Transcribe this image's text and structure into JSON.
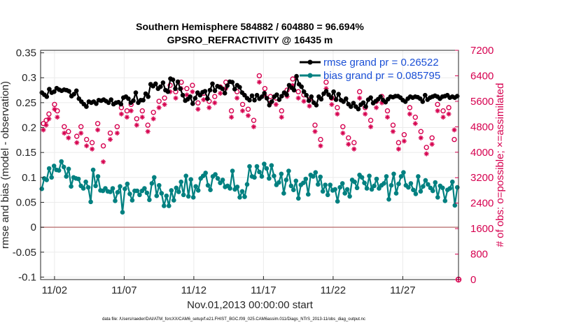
{
  "chart_data": {
    "type": "line",
    "title_line1": "Southern Hemisphere 584882 / 604880 = 96.694%",
    "title_line2": "GPSRO_REFRACTIVITY @ 16435 m",
    "xlabel": "Nov.01,2013 00:00:00 start",
    "ylabel_left": "rmse and bias (model - observation)",
    "ylabel_right": "# of obs: o=possible; ×=assimilated",
    "footnote": "data file: /Users/raeder/DAI/ATM_forcXX/CAM6_setup/f.e21.FHIST_BGC.f09_025.CAM6assim.011/Diags_NTrS_2013-11/obs_diag_output.nc",
    "x_range_days": [
      0.5,
      30.5
    ],
    "ylim_left": [
      -0.105,
      0.355
    ],
    "ylim_right": [
      0,
      7200
    ],
    "x_ticks": [
      {
        "day": 1.5,
        "label": "11/02"
      },
      {
        "day": 6.5,
        "label": "11/07"
      },
      {
        "day": 11.5,
        "label": "11/12"
      },
      {
        "day": 16.5,
        "label": "11/17"
      },
      {
        "day": 21.5,
        "label": "11/22"
      },
      {
        "day": 26.5,
        "label": "11/27"
      }
    ],
    "y_ticks_left": [
      "0.35",
      "0.3",
      "0.25",
      "0.2",
      "0.15",
      "0.1",
      "0.05",
      "0",
      "-0.05",
      "-0.1"
    ],
    "y_ticks_left_values": [
      0.35,
      0.3,
      0.25,
      0.2,
      0.15,
      0.1,
      0.05,
      0,
      -0.05,
      -0.1
    ],
    "y_ticks_right": [
      "7200",
      "6400",
      "5600",
      "4800",
      "4000",
      "3200",
      "2400",
      "1600",
      "800",
      "0"
    ],
    "y_ticks_right_values": [
      7200,
      6400,
      5600,
      4800,
      4000,
      3200,
      2400,
      1600,
      800,
      0
    ],
    "legend": [
      {
        "label": "rmse grand pr = 0.26522",
        "color": "#000000"
      },
      {
        "label": "bias grand pr = 0.085795",
        "color": "#008080"
      }
    ],
    "colors": {
      "rmse": "#000000",
      "bias": "#008080",
      "obs": "#d6004f",
      "zero_line": "#c08080",
      "text_blue": "#1a4fd6"
    },
    "series": [
      {
        "name": "rmse grand pr = 0.26522",
        "values": [
          0.27,
          0.266,
          0.262,
          0.277,
          0.27,
          0.272,
          0.279,
          0.276,
          0.274,
          0.276,
          0.275,
          0.273,
          0.263,
          0.267,
          0.274,
          0.258,
          0.252,
          0.247,
          0.242,
          0.252,
          0.25,
          0.252,
          0.248,
          0.255,
          0.254,
          0.256,
          0.253,
          0.25,
          0.256,
          0.247,
          0.25,
          0.251,
          0.247,
          0.26,
          0.262,
          0.258,
          0.25,
          0.254,
          0.27,
          0.25,
          0.255,
          0.255,
          0.268,
          0.262,
          0.287,
          0.283,
          0.288,
          0.278,
          0.282,
          0.29,
          0.275,
          0.272,
          0.298,
          0.296,
          0.278,
          0.292,
          0.278,
          0.265,
          0.254,
          0.257,
          0.262,
          0.248,
          0.259,
          0.27,
          0.265,
          0.271,
          0.273,
          0.258,
          0.275,
          0.288,
          0.274,
          0.283,
          0.281,
          0.278,
          0.269,
          0.284,
          0.292,
          0.291,
          0.277,
          0.285,
          0.281,
          0.27,
          0.265,
          0.259,
          0.255,
          0.264,
          0.255,
          0.265,
          0.258,
          0.262,
          0.269,
          0.259,
          0.245,
          0.252,
          0.262,
          0.266,
          0.256,
          0.263,
          0.27,
          0.266,
          0.285,
          0.28,
          0.275,
          0.303,
          0.287,
          0.282,
          0.272,
          0.265,
          0.254,
          0.262,
          0.25,
          0.245,
          0.262,
          0.257,
          0.268,
          0.273,
          0.266,
          0.26,
          0.272,
          0.256,
          0.267,
          0.255,
          0.252,
          0.258,
          0.247,
          0.242,
          0.249,
          0.242,
          0.237,
          0.246,
          0.25,
          0.242,
          0.256,
          0.26,
          0.249,
          0.253,
          0.257,
          0.262,
          0.255,
          0.251,
          0.257,
          0.262,
          0.261,
          0.263,
          0.263,
          0.26,
          0.255,
          0.252,
          0.258,
          0.262,
          0.26,
          0.262,
          0.261,
          0.258,
          0.252,
          0.265,
          0.256,
          0.26,
          0.262,
          0.264,
          0.262,
          0.258,
          0.262,
          0.263,
          0.265,
          0.26,
          0.262,
          0.26,
          0.263
        ]
      },
      {
        "name": "bias grand pr = 0.085795",
        "values": [
          0.077,
          0.098,
          0.095,
          0.118,
          0.1,
          0.123,
          0.115,
          0.114,
          0.132,
          0.121,
          0.102,
          0.117,
          0.082,
          0.1,
          0.098,
          0.097,
          0.083,
          0.078,
          0.091,
          0.08,
          0.051,
          0.115,
          0.083,
          0.102,
          0.074,
          0.073,
          0.078,
          0.072,
          0.071,
          0.078,
          0.053,
          0.07,
          0.082,
          0.03,
          0.077,
          0.087,
          0.067,
          0.054,
          0.073,
          0.073,
          0.065,
          0.073,
          0.078,
          0.069,
          0.055,
          0.088,
          0.1,
          0.063,
          0.084,
          0.068,
          0.043,
          0.063,
          0.043,
          0.074,
          0.054,
          0.079,
          0.071,
          0.091,
          0.065,
          0.103,
          0.062,
          0.096,
          0.06,
          0.082,
          0.074,
          0.098,
          0.103,
          0.109,
          0.084,
          0.075,
          0.102,
          0.106,
          0.098,
          0.089,
          0.095,
          0.081,
          0.083,
          0.078,
          0.113,
          0.076,
          0.081,
          0.06,
          0.072,
          0.061,
          0.086,
          0.122,
          0.102,
          0.1,
          0.122,
          0.111,
          0.102,
          0.127,
          0.118,
          0.098,
          0.124,
          0.103,
          0.085,
          0.09,
          0.107,
          0.068,
          0.095,
          0.113,
          0.083,
          0.075,
          0.093,
          0.058,
          0.085,
          0.089,
          0.097,
          0.066,
          0.105,
          0.102,
          0.11,
          0.086,
          0.101,
          0.072,
          0.085,
          0.065,
          0.085,
          0.074,
          0.076,
          0.052,
          0.08,
          0.088,
          0.068,
          0.076,
          0.062,
          0.095,
          0.091,
          0.079,
          0.105,
          0.1,
          0.089,
          0.078,
          0.103,
          0.076,
          0.083,
          0.097,
          0.078,
          0.084,
          0.088,
          0.102,
          0.056,
          0.084,
          0.107,
          0.068,
          0.087,
          0.102,
          0.11,
          0.084,
          0.08,
          0.088,
          0.075,
          0.067,
          0.102,
          0.072,
          0.082,
          0.094,
          0.086,
          0.079,
          0.073,
          0.09,
          0.06,
          0.083,
          0.079,
          0.053,
          0.075,
          0.078,
          0.091,
          0.044,
          0.08
        ]
      },
      {
        "name": "possible",
        "x": [
          0.7,
          0.9,
          1.1,
          1.5,
          1.7,
          2.2,
          2.5,
          3.1,
          3.4,
          3.8,
          4.2,
          4.6,
          5.0,
          5.5,
          6.0,
          6.3,
          6.7,
          7.0,
          7.4,
          7.8,
          8.2,
          8.6,
          9.0,
          9.4,
          9.8,
          10.2,
          10.6,
          11.0,
          11.4,
          11.8,
          12.2,
          12.6,
          13.0,
          13.4,
          13.8,
          14.2,
          14.6,
          15.0,
          15.4,
          15.8,
          16.2,
          16.6,
          17.0,
          17.4,
          17.8,
          18.2,
          18.6,
          19.0,
          19.4,
          19.8,
          20.2,
          20.6,
          21.0,
          21.4,
          21.8,
          22.2,
          22.6,
          23.0,
          23.4,
          23.8,
          24.2,
          24.6,
          25.0,
          25.4,
          25.8,
          26.2,
          26.6,
          27.0,
          27.4,
          27.8,
          28.2,
          28.6,
          29.0,
          29.4,
          29.8,
          30.2
        ],
        "values": [
          4900,
          5000,
          5200,
          5500,
          5300,
          4800,
          4650,
          4500,
          4800,
          4400,
          4300,
          4900,
          4200,
          4600,
          4800,
          5400,
          5300,
          5500,
          5050,
          5300,
          4850,
          5250,
          5600,
          5700,
          6100,
          5900,
          6200,
          6000,
          6100,
          5550,
          5850,
          5600,
          5750,
          6050,
          6200,
          5300,
          5900,
          5500,
          5350,
          5000,
          6400,
          6000,
          5750,
          5700,
          5300,
          5950,
          6300,
          5900,
          5800,
          5650,
          4850,
          4400,
          6200,
          5700,
          5400,
          4800,
          4450,
          4300,
          5900,
          5400,
          5000,
          5600,
          5750,
          5300,
          4850,
          4300,
          4550,
          5400,
          5100,
          4650,
          4150,
          4450,
          5500,
          5300,
          5400,
          4400
        ]
      },
      {
        "name": "assimilated",
        "x": [
          0.7,
          0.9,
          1.1,
          1.5,
          1.7,
          2.2,
          2.5,
          3.1,
          3.4,
          3.8,
          4.2,
          4.6,
          5.0,
          5.5,
          6.0,
          6.3,
          6.7,
          7.0,
          7.4,
          7.8,
          8.2,
          8.6,
          9.0,
          9.4,
          9.8,
          10.2,
          10.6,
          11.0,
          11.4,
          11.8,
          12.2,
          12.6,
          13.0,
          13.4,
          13.8,
          14.2,
          14.6,
          15.0,
          15.4,
          15.8,
          16.2,
          16.6,
          17.0,
          17.4,
          17.8,
          18.2,
          18.6,
          19.0,
          19.4,
          19.8,
          20.2,
          20.6,
          21.0,
          21.4,
          21.8,
          22.2,
          22.6,
          23.0,
          23.4,
          23.8,
          24.2,
          24.6,
          25.0,
          25.4,
          25.8,
          26.2,
          26.6,
          27.0,
          27.4,
          27.8,
          28.2,
          28.6,
          29.0,
          29.4,
          29.8,
          30.2
        ],
        "values": [
          4700,
          4850,
          5050,
          5350,
          5100,
          4600,
          4450,
          4300,
          4600,
          4200,
          4100,
          4700,
          3700,
          4400,
          4600,
          5200,
          5100,
          5300,
          4850,
          5100,
          4650,
          5050,
          5400,
          5500,
          5900,
          5700,
          6000,
          5800,
          5900,
          5350,
          5650,
          5400,
          5550,
          5850,
          6000,
          5100,
          5700,
          5300,
          5150,
          4800,
          6200,
          5800,
          5550,
          5500,
          5100,
          5750,
          6100,
          5700,
          5600,
          5450,
          4650,
          4200,
          6000,
          5500,
          5200,
          4600,
          4250,
          4100,
          5700,
          5200,
          4800,
          5400,
          5550,
          5100,
          4650,
          4100,
          4350,
          5200,
          4900,
          4450,
          3950,
          4250,
          5300,
          5100,
          5200,
          4700
        ]
      }
    ],
    "obs_last_point": {
      "day": 30.5,
      "value": 0
    }
  }
}
